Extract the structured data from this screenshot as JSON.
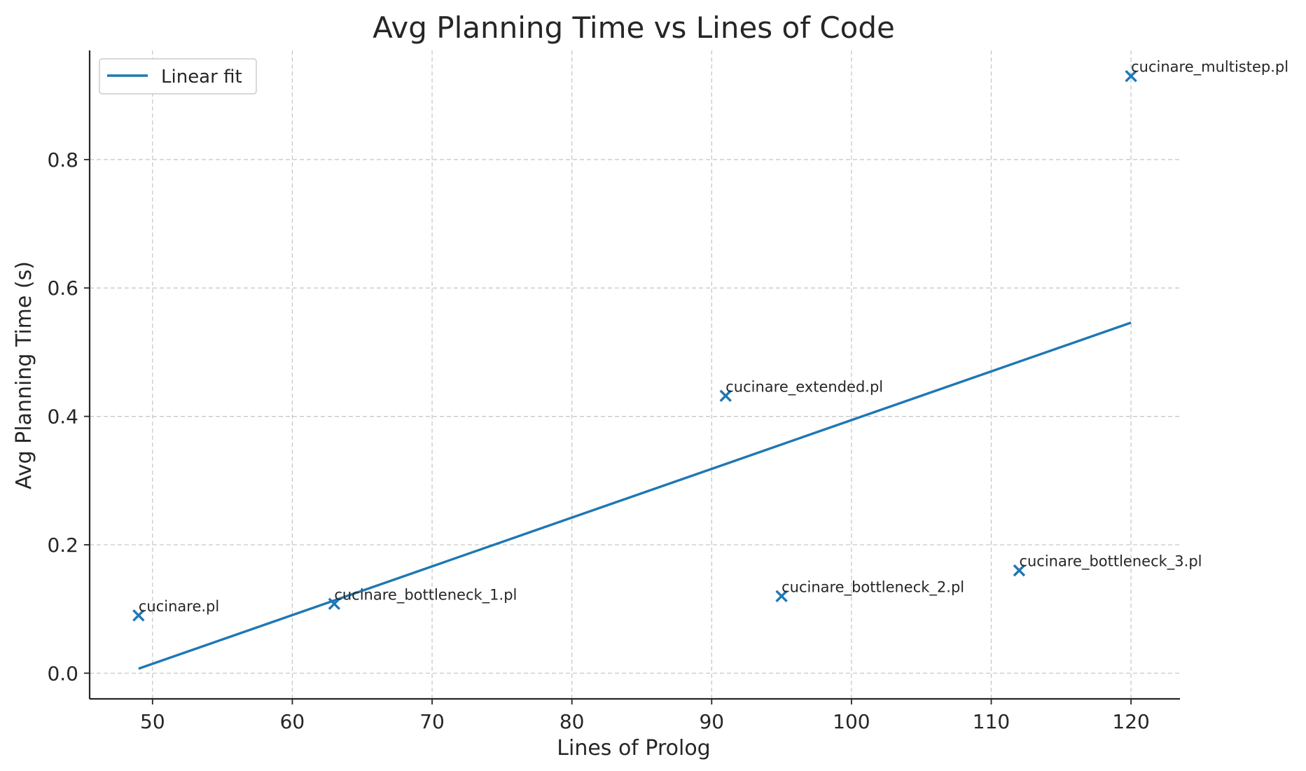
{
  "chart_data": {
    "type": "scatter",
    "title": "Avg Planning Time vs Lines of Code",
    "xlabel": "Lines of Prolog",
    "ylabel": "Avg Planning Time (s)",
    "xlim": [
      45.5,
      123.5
    ],
    "ylim": [
      -0.04,
      0.97
    ],
    "xticks": [
      50,
      60,
      70,
      80,
      90,
      100,
      110,
      120
    ],
    "xtick_labels": [
      "50",
      "60",
      "70",
      "80",
      "90",
      "100",
      "110",
      "120"
    ],
    "yticks": [
      0.0,
      0.2,
      0.4,
      0.6,
      0.8
    ],
    "ytick_labels": [
      "0.0",
      "0.2",
      "0.4",
      "0.6",
      "0.8"
    ],
    "grid": true,
    "legend": {
      "placement": "top-left",
      "entries": [
        "Linear fit"
      ]
    },
    "colors": {
      "series": "#1f77b4"
    },
    "points": [
      {
        "label": "cucinare.pl",
        "x": 49,
        "y": 0.09
      },
      {
        "label": "cucinare_bottleneck_1.pl",
        "x": 63,
        "y": 0.108
      },
      {
        "label": "cucinare_extended.pl",
        "x": 91,
        "y": 0.432
      },
      {
        "label": "cucinare_bottleneck_2.pl",
        "x": 95,
        "y": 0.12
      },
      {
        "label": "cucinare_bottleneck_3.pl",
        "x": 112,
        "y": 0.16
      },
      {
        "label": "cucinare_multistep.pl",
        "x": 120,
        "y": 0.93
      }
    ],
    "series": [
      {
        "name": "Linear fit",
        "type": "line",
        "x": [
          49,
          120
        ],
        "y": [
          0.007,
          0.546
        ]
      }
    ]
  }
}
